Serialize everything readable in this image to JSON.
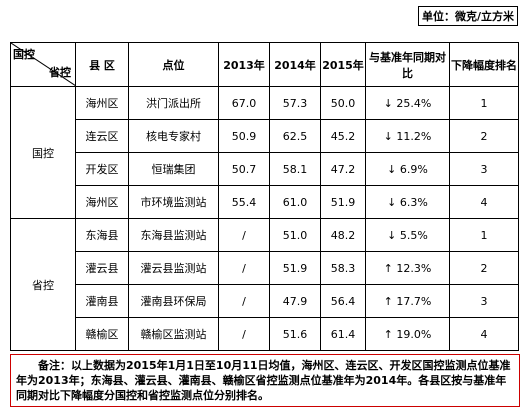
{
  "unit": "单位：微克/立方米",
  "table": {
    "header": {
      "group_top": "国控",
      "group_bottom": "省控",
      "columns": [
        "县 区",
        "点位",
        "2013年",
        "2014年",
        "2015年",
        "与基准年同期对比",
        "下降幅度排名"
      ]
    },
    "groups": [
      {
        "name": "国控",
        "rows": [
          [
            "海州区",
            "洪门派出所",
            "67.0",
            "57.3",
            "50.0",
            "↓ 25.4%",
            "1"
          ],
          [
            "连云区",
            "核电专家村",
            "50.9",
            "62.5",
            "45.2",
            "↓ 11.2%",
            "2"
          ],
          [
            "开发区",
            "恒瑞集团",
            "50.7",
            "58.1",
            "47.2",
            "↓ 6.9%",
            "3"
          ],
          [
            "海州区",
            "市环境监测站",
            "55.4",
            "61.0",
            "51.9",
            "↓ 6.3%",
            "4"
          ]
        ]
      },
      {
        "name": "省控",
        "rows": [
          [
            "东海县",
            "东海县监测站",
            "/",
            "51.0",
            "48.2",
            "↓ 5.5%",
            "1"
          ],
          [
            "灌云县",
            "灌云县监测站",
            "/",
            "51.9",
            "58.3",
            "↑ 12.3%",
            "2"
          ],
          [
            "灌南县",
            "灌南县环保局",
            "/",
            "47.9",
            "56.4",
            "↑ 17.7%",
            "3"
          ],
          [
            "赣榆区",
            "赣榆区监测站",
            "/",
            "51.6",
            "61.4",
            "↑ 19.0%",
            "4"
          ]
        ]
      }
    ]
  },
  "note": "备注：以上数据为2015年1月1日至10月11日均值，海州区、连云区、开发区国控监测点位基准年为2013年；东海县、灌云县、灌南县、赣榆区省控监测点位基准年为2014年。各县区按与基准年同期对比下降幅度分国控和省控监测点位分别排名。"
}
